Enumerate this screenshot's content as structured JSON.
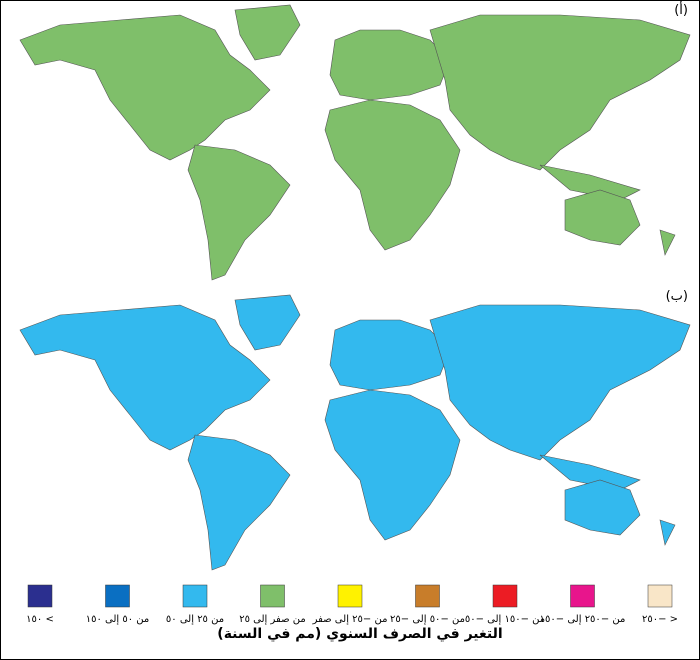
{
  "panels": [
    {
      "label": "(أ)"
    },
    {
      "label": "(ب)"
    }
  ],
  "legend": {
    "title": "التغير في الصرف السنوي (مم في السنة)",
    "items": [
      {
        "label": "> ١٥٠",
        "color": "#2b2f8f"
      },
      {
        "label": "من ٥٠ إلى ١٥٠",
        "color": "#0a6fc2"
      },
      {
        "label": "من ٢٥ إلى ٥٠",
        "color": "#33b9ee"
      },
      {
        "label": "من صفر إلى ٢٥",
        "color": "#7fbf6a"
      },
      {
        "label": "من −٢٥ إلى صفر",
        "color": "#fff200"
      },
      {
        "label": "من −٥٠ إلى −٢٥",
        "color": "#c87d2a"
      },
      {
        "label": "من −١٥٠ إلى −٥٠",
        "color": "#ec1c24"
      },
      {
        "label": "من −٢٥٠ إلى −١٥٠",
        "color": "#e8158c"
      },
      {
        "label": "< −٢٥٠",
        "color": "#f9e6c8"
      }
    ]
  }
}
